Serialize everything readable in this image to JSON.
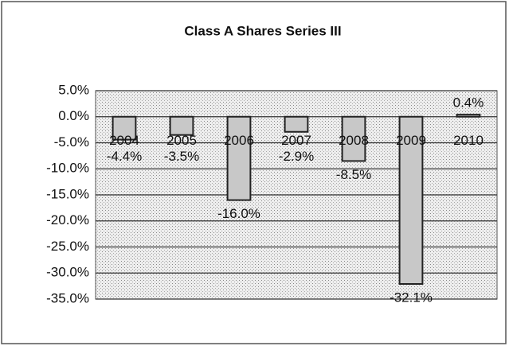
{
  "chart_data": {
    "type": "bar",
    "title": "Class A Shares Series III",
    "categories": [
      "2004",
      "2005",
      "2006",
      "2007",
      "2008",
      "2009",
      "2010"
    ],
    "values": [
      -4.4,
      -3.5,
      -16.0,
      -2.9,
      -8.5,
      -32.1,
      0.4
    ],
    "value_labels": [
      "-4.4%",
      "-3.5%",
      "-16.0%",
      "-2.9%",
      "-8.5%",
      "-32.1%",
      "0.4%"
    ],
    "color": "#c8c8c8",
    "ylim": [
      -35,
      5
    ],
    "yticks": [
      {
        "value": 5,
        "label": "5.0%"
      },
      {
        "value": 0,
        "label": "0.0%"
      },
      {
        "value": -5,
        "label": "-5.0%"
      },
      {
        "value": -10,
        "label": "-10.0%"
      },
      {
        "value": -15,
        "label": "-15.0%"
      },
      {
        "value": -20,
        "label": "-20.0%"
      },
      {
        "value": -25,
        "label": "-25.0%"
      },
      {
        "value": -30,
        "label": "-30.0%"
      },
      {
        "value": -35,
        "label": "-35.0%"
      }
    ],
    "grid": true
  }
}
